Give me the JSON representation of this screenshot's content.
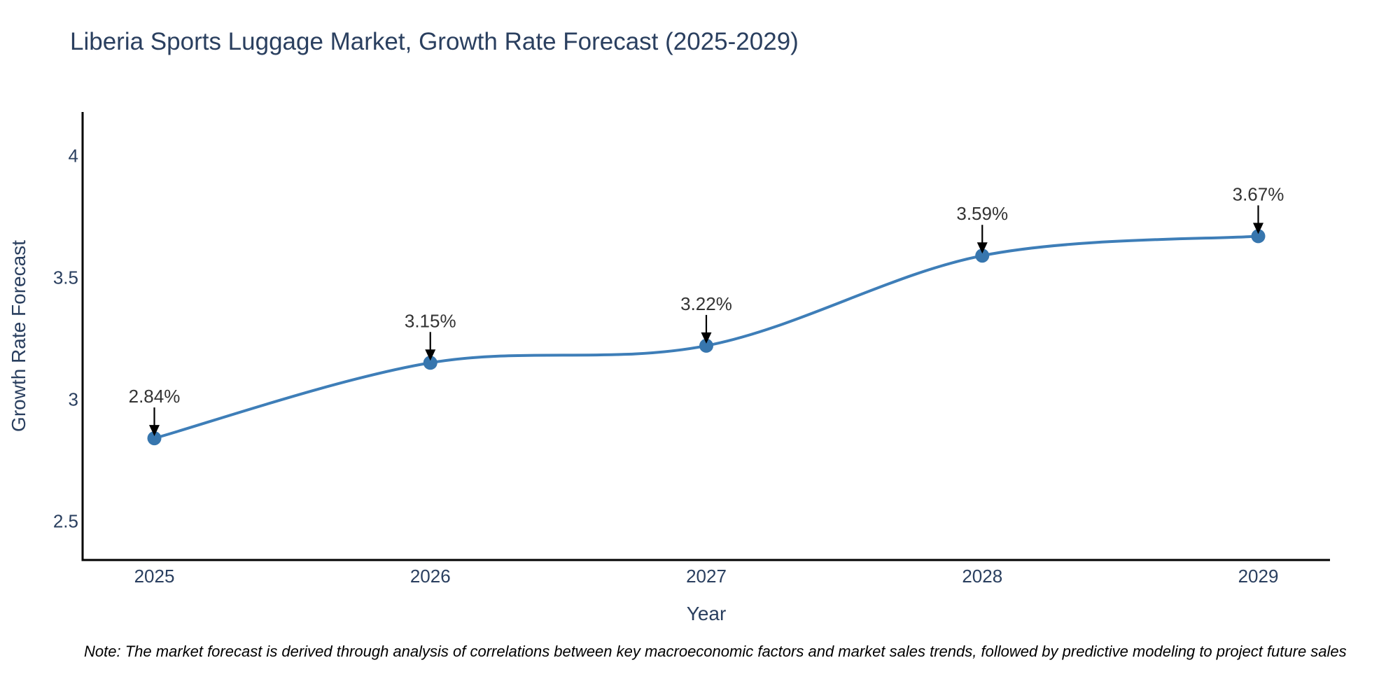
{
  "chart_data": {
    "type": "line",
    "title": "Liberia Sports Luggage Market, Growth Rate Forecast (2025-2029)",
    "xlabel": "Year",
    "ylabel": "Growth Rate Forecast",
    "x": [
      2025,
      2026,
      2027,
      2028,
      2029
    ],
    "values": [
      2.84,
      3.15,
      3.22,
      3.59,
      3.67
    ],
    "point_labels": [
      "2.84%",
      "3.15%",
      "3.22%",
      "3.59%",
      "3.67%"
    ],
    "x_tick_labels": [
      "2025",
      "2026",
      "2027",
      "2028",
      "2029"
    ],
    "y_tick_values": [
      2.5,
      3,
      3.5,
      4
    ],
    "y_tick_labels": [
      "2.5",
      "3",
      "3.5",
      "4"
    ],
    "xlim": [
      2024.74,
      2029.26
    ],
    "ylim": [
      2.34,
      4.18
    ],
    "grid": false,
    "legend": false,
    "line_shape": "spline",
    "annotation_style": "label-above-with-down-arrow",
    "colors": {
      "line": "#3e7eb8",
      "marker": "#3776ae",
      "axis": "#000000",
      "arrow": "#000000",
      "title_text": "#2a3f5f",
      "tick_text": "#2a3f5f",
      "annotation_text": "#333333",
      "note_text": "#000000",
      "background": "#ffffff"
    }
  },
  "note": "Note: The market forecast is derived through analysis of correlations between key macroeconomic factors and market sales trends, followed by predictive modeling to project future sales"
}
